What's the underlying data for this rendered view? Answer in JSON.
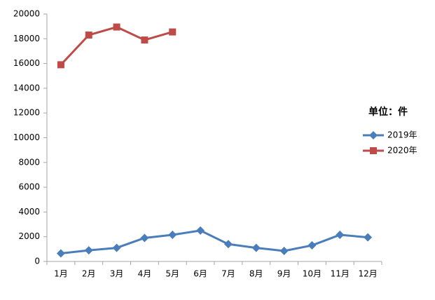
{
  "chart_data": {
    "type": "line",
    "annotation": "单位：件",
    "categories": [
      "1月",
      "2月",
      "3月",
      "4月",
      "5月",
      "6月",
      "7月",
      "8月",
      "9月",
      "10月",
      "11月",
      "12月"
    ],
    "series": [
      {
        "name": "2019年",
        "color": "#4a7ebb",
        "marker": "diamond",
        "values": [
          650,
          900,
          1100,
          1900,
          2150,
          2500,
          1400,
          1100,
          850,
          1300,
          2150,
          1950
        ]
      },
      {
        "name": "2020年",
        "color": "#be4b48",
        "marker": "square",
        "values": [
          15900,
          18300,
          18950,
          17900,
          18550,
          null,
          null,
          null,
          null,
          null,
          null,
          null
        ]
      }
    ],
    "ylim": [
      0,
      20000
    ],
    "yticks": [
      0,
      2000,
      4000,
      6000,
      8000,
      10000,
      12000,
      14000,
      16000,
      18000,
      20000
    ],
    "grid": false,
    "legend": "right"
  }
}
